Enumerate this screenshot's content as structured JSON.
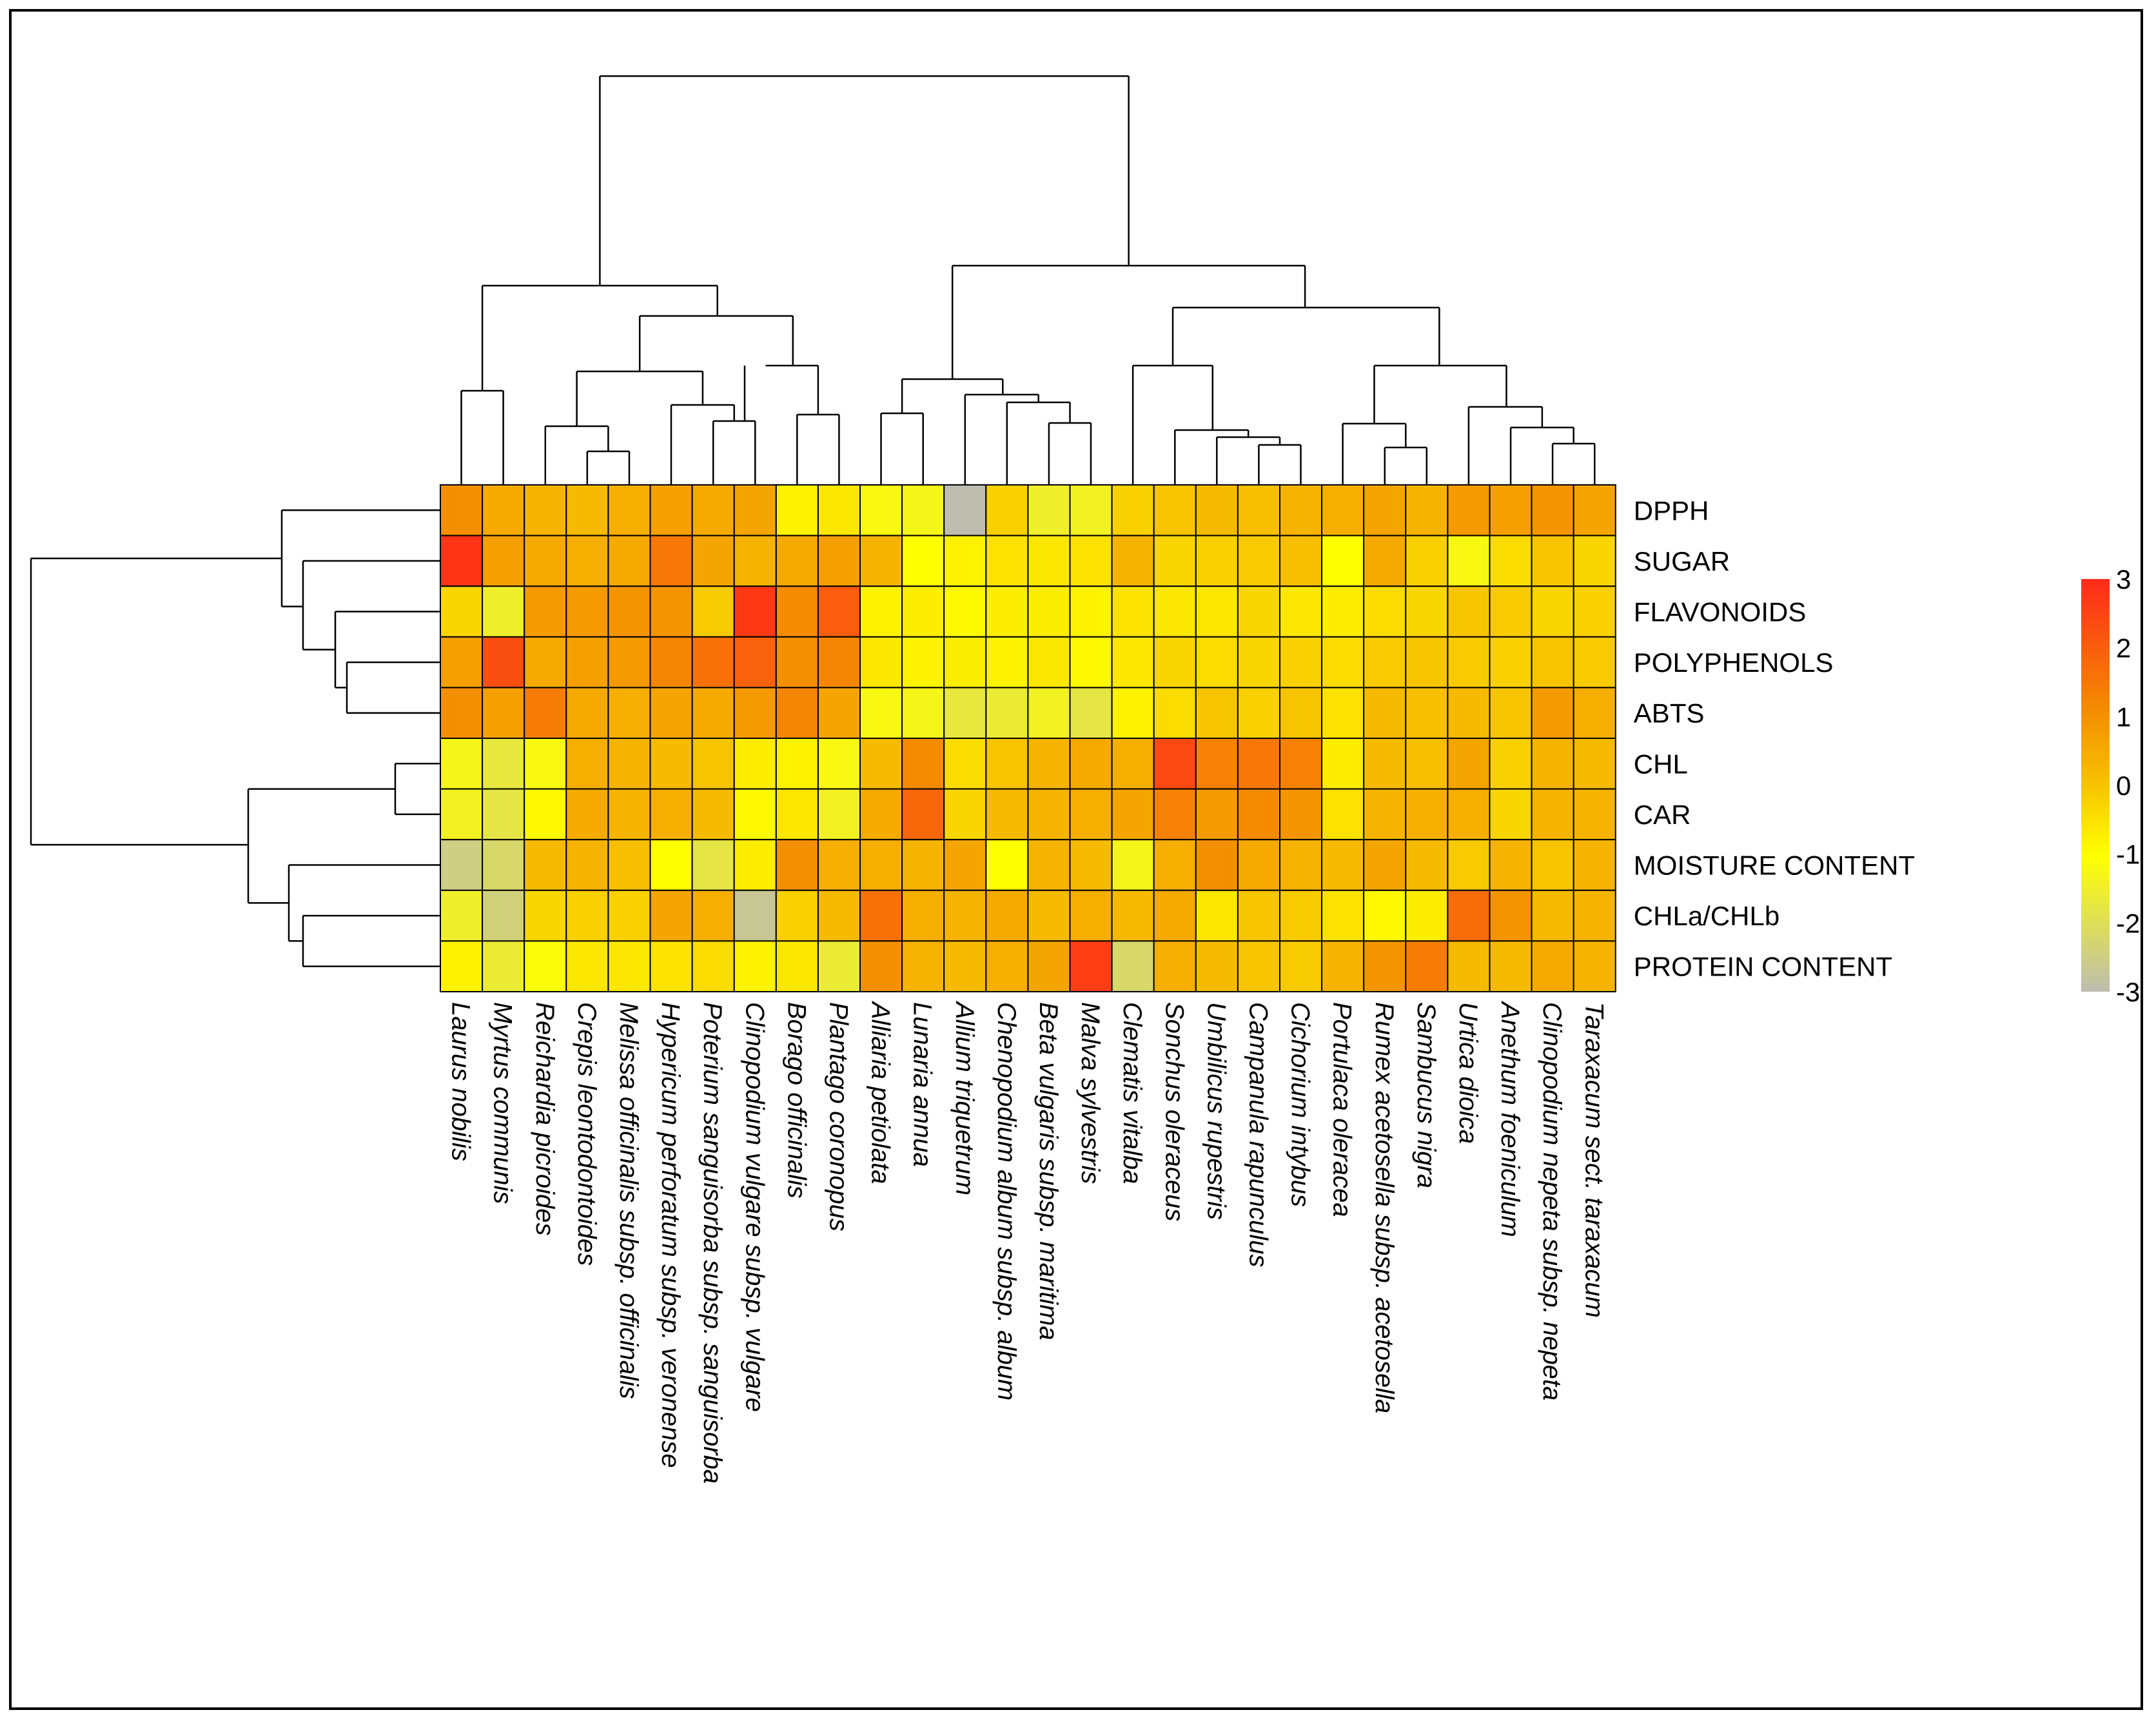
{
  "chart_data": {
    "type": "heatmap",
    "title": "",
    "rows": [
      "DPPH",
      "SUGAR",
      "FLAVONOIDS",
      "POLYPHENOLS",
      "ABTS",
      "CHL",
      "CAR",
      "MOISTURE CONTENT",
      "CHLa/CHLb",
      "PROTEIN CONTENT"
    ],
    "columns": [
      "Laurus nobilis",
      "Myrtus communis",
      "Reichardia picroides",
      "Crepis leontodontoides",
      "Melissa officinalis subsp. officinalis",
      "Hypericum perforatum subsp. veronense",
      "Poterium sanguisorba subsp. sanguisorba",
      "Clinopodium vulgare subsp. vulgare",
      "Borago officinalis",
      "Plantago coronopus",
      "Alliaria petiolata",
      "Lunaria annua",
      "Allium triquetrum",
      "Chenopodium album subsp. album",
      "Beta vulgaris subsp. maritima",
      "Malva sylvestris",
      "Clematis vitalba",
      "Sonchus oleraceus",
      "Umbilicus rupestris",
      "Campanula rapunculus",
      "Cichorium intybus",
      "Portulaca oleracea",
      "Rumex acetosella subsp. acetosella",
      "Sambucus nigra",
      "Urtica dioica",
      "Anethum foeniculum",
      "Clinopodium nepeta subsp. nepeta",
      "Taraxacum sect. taraxacum"
    ],
    "values": [
      [
        1.0,
        0.5,
        0.3,
        0.2,
        0.4,
        0.7,
        0.5,
        0.6,
        -0.8,
        -0.6,
        -1.2,
        -1.3,
        -3.0,
        -0.2,
        -1.5,
        -1.4,
        -0.2,
        0.0,
        0.2,
        0.1,
        0.3,
        0.4,
        0.6,
        0.3,
        0.8,
        0.7,
        0.9,
        0.6
      ],
      [
        2.8,
        0.7,
        0.5,
        0.4,
        0.5,
        1.5,
        0.6,
        0.3,
        0.5,
        0.7,
        0.3,
        -1.0,
        -0.8,
        -0.5,
        -0.6,
        -0.5,
        0.3,
        -0.3,
        -0.2,
        -0.1,
        0.1,
        -1.0,
        0.5,
        -0.2,
        -1.2,
        -0.4,
        0.0,
        -0.3
      ],
      [
        -0.3,
        -1.5,
        0.8,
        0.8,
        0.9,
        0.9,
        -0.1,
        2.7,
        1.1,
        2.0,
        -0.8,
        -0.7,
        -0.9,
        -0.7,
        -0.7,
        -0.8,
        -0.5,
        -0.6,
        -0.6,
        -0.3,
        -0.6,
        -0.7,
        -0.4,
        -0.3,
        0.0,
        -0.1,
        -0.3,
        -0.2
      ],
      [
        0.7,
        2.3,
        0.5,
        0.7,
        0.8,
        1.2,
        1.6,
        1.9,
        1.0,
        1.2,
        -0.6,
        -0.8,
        -0.7,
        -0.8,
        -0.6,
        -0.9,
        -0.6,
        -0.3,
        -0.4,
        -0.3,
        -0.2,
        -0.4,
        -0.1,
        0.0,
        -0.1,
        -0.2,
        0.0,
        -0.1
      ],
      [
        1.0,
        0.7,
        1.4,
        0.5,
        0.4,
        0.6,
        0.5,
        0.8,
        1.2,
        0.6,
        -1.2,
        -1.3,
        -1.7,
        -1.6,
        -1.4,
        -1.8,
        -0.8,
        -0.4,
        0.0,
        -0.2,
        0.0,
        -0.5,
        0.2,
        0.1,
        0.2,
        0.0,
        0.8,
        0.4
      ],
      [
        -1.3,
        -1.7,
        -1.2,
        0.4,
        0.3,
        0.2,
        0.0,
        -0.7,
        -0.8,
        -1.2,
        0.2,
        1.1,
        -0.4,
        0.0,
        0.3,
        0.5,
        0.4,
        2.4,
        1.3,
        1.5,
        1.3,
        -0.7,
        0.2,
        0.1,
        0.6,
        -0.2,
        0.3,
        0.2
      ],
      [
        -1.4,
        -1.8,
        -0.9,
        0.5,
        0.3,
        0.4,
        0.2,
        -0.9,
        -0.6,
        -1.4,
        0.5,
        1.8,
        -0.3,
        0.2,
        0.3,
        0.4,
        0.6,
        1.3,
        0.8,
        1.1,
        0.9,
        -0.5,
        0.3,
        0.4,
        0.4,
        -0.3,
        0.3,
        0.3
      ],
      [
        -2.5,
        -2.2,
        0.2,
        0.3,
        0.1,
        -1.0,
        -1.8,
        -0.7,
        1.0,
        0.4,
        0.4,
        0.3,
        0.6,
        -1.0,
        0.3,
        0.2,
        -1.3,
        0.4,
        1.0,
        0.5,
        0.3,
        0.2,
        0.6,
        0.2,
        -0.1,
        0.3,
        0.0,
        0.3
      ],
      [
        -1.5,
        -2.4,
        -0.3,
        -0.2,
        -0.2,
        0.6,
        0.4,
        -2.7,
        -0.2,
        0.2,
        1.6,
        0.4,
        0.3,
        0.5,
        0.2,
        0.4,
        0.2,
        0.5,
        -0.6,
        0.0,
        -0.1,
        -0.5,
        -0.9,
        -0.7,
        1.7,
        0.9,
        0.2,
        0.3
      ],
      [
        -0.8,
        -1.6,
        -1.1,
        -0.6,
        -0.6,
        -0.5,
        -0.4,
        -0.8,
        -0.6,
        -1.6,
        1.0,
        0.3,
        0.2,
        0.4,
        0.6,
        2.6,
        -2.2,
        0.4,
        0.2,
        0.0,
        -0.1,
        0.3,
        0.9,
        1.4,
        0.2,
        0.2,
        0.5,
        0.3
      ]
    ],
    "colorbar": {
      "min": -3,
      "max": 3,
      "ticks": [
        3,
        2,
        1,
        0,
        -1,
        -2,
        -3
      ]
    },
    "colors": {
      "low": "#bdbdb0",
      "mid_low": "#ffff00",
      "mid": "#f7c400",
      "mid_high": "#f49000",
      "high": "#ff2a1a"
    },
    "row_dendrogram": true,
    "column_dendrogram": true
  }
}
